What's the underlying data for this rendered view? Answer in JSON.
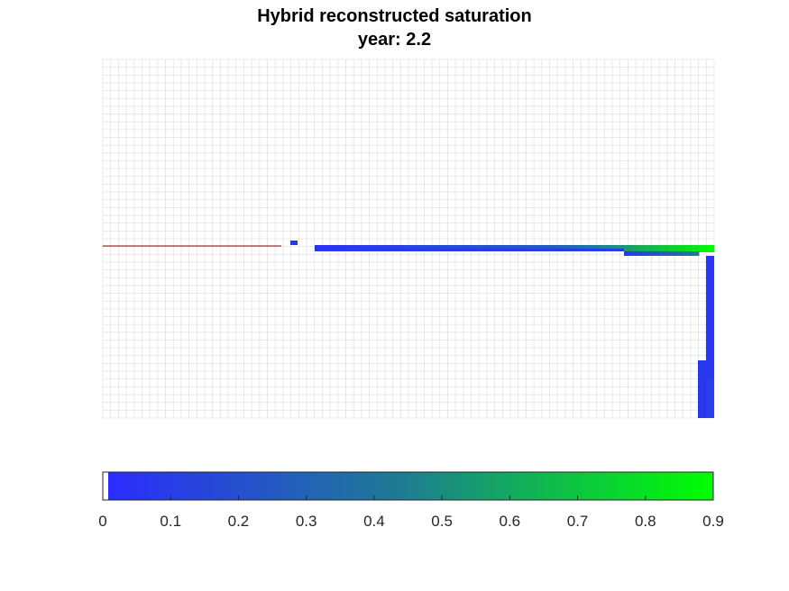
{
  "chart_data": {
    "type": "heatmap",
    "title": "Hybrid reconstructed saturation",
    "subtitle": "year: 2.2",
    "xlabel": "",
    "ylabel": "",
    "grid": true,
    "colormap": {
      "stops": [
        "#ffffff",
        "#2b2bff",
        "#1d7f8f",
        "#00ff00"
      ],
      "range": [
        0,
        0.9
      ],
      "ticks": [
        "0",
        "0.1",
        "0.2",
        "0.3",
        "0.4",
        "0.5",
        "0.6",
        "0.7",
        "0.8",
        "0.9"
      ]
    },
    "grid_size": {
      "cols": 78,
      "rows": 46
    },
    "legend_position": "bottom"
  },
  "colors": {
    "grid_line": "#e3e3e3",
    "fault_line": "#8b0000",
    "low": "#2b2bff",
    "high": "#00ff00"
  }
}
